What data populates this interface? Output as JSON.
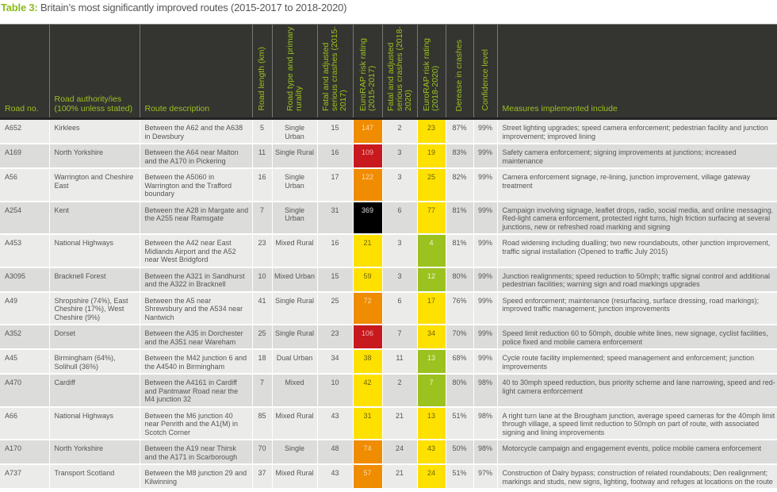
{
  "title": {
    "label": "Table 3:",
    "text": " Britain’s most significantly improved routes (2015-2017 to 2018-2020)"
  },
  "colors": {
    "header_bg": "#343431",
    "header_text": "#9bc21e",
    "orange": "#f08c00",
    "red": "#c8191e",
    "yellow": "#ffe100",
    "green": "#9bc21e",
    "black": "#000000"
  },
  "headers": [
    "Road no.",
    "Road authority/ies (100% unless stated)",
    "Route description",
    "Road length (km)",
    "Road type and primary rurality",
    "Fatal and adjusted serious crashes (2015-2017)",
    "EuroRAP risk rating (2015-2017)",
    "Fatal and adjusted serious crashes (2018-2020)",
    "EuroRAP risk rating (2018-2020)",
    "Derease in crashes",
    "Confidence level",
    "Measures implemented include"
  ],
  "rows": [
    {
      "road": "A652",
      "authority": "Kirklees",
      "route": "Between the A62 and the A638 in Dewsbury",
      "length": "5",
      "type": "Single Urban",
      "crashes1": "15",
      "rating1": "147",
      "band1": "orange",
      "crashes2": "2",
      "rating2": "23",
      "band2": "yellow",
      "decrease": "87%",
      "confidence": "99%",
      "measures": "Street lighting upgrades; speed camera enforcement; pedestrian facility and junction improvement; improved lining"
    },
    {
      "road": "A169",
      "authority": "North Yorkshire",
      "route": "Between the A64 near Malton and the A170 in Pickering",
      "length": "11",
      "type": "Single Rural",
      "crashes1": "16",
      "rating1": "109",
      "band1": "red",
      "crashes2": "3",
      "rating2": "19",
      "band2": "yellow",
      "decrease": "83%",
      "confidence": "99%",
      "measures": "Safety camera enforcement; signing improvements at junctions; increased maintenance"
    },
    {
      "road": "A56",
      "authority": "Warrington and Cheshire East",
      "route": "Between the A5060 in Warrington and the Trafford boundary",
      "length": "16",
      "type": "Single Urban",
      "crashes1": "17",
      "rating1": "122",
      "band1": "orange",
      "crashes2": "3",
      "rating2": "25",
      "band2": "yellow",
      "decrease": "82%",
      "confidence": "99%",
      "measures": "Camera enforcement signage, re-lining, junction improvement, village gateway treatment"
    },
    {
      "road": "A254",
      "authority": "Kent",
      "route": "Between the A28 in Margate and the A255 near Ramsgate",
      "length": "7",
      "type": "Single Urban",
      "crashes1": "31",
      "rating1": "369",
      "band1": "black",
      "crashes2": "6",
      "rating2": "77",
      "band2": "yellow",
      "decrease": "81%",
      "confidence": "99%",
      "measures": "Campaign involving signage, leaflet drops, radio, social media, and online messaging. Red-light camera enforcement, protected right turns, high friction surfacing at several junctions, new or refreshed road marking and signing"
    },
    {
      "road": "A453",
      "authority": "National Highways",
      "route": "Between the A42 near East Midlands Airport and the A52 near West Bridgford",
      "length": "23",
      "type": "Mixed Rural",
      "crashes1": "16",
      "rating1": "21",
      "band1": "yellow",
      "crashes2": "3",
      "rating2": "4",
      "band2": "green",
      "decrease": "81%",
      "confidence": "99%",
      "measures": "Road widening including dualling; two new roundabouts, other junction improvement, traffic signal installation (Opened to traffic July 2015)"
    },
    {
      "road": "A3095",
      "authority": "Bracknell Forest",
      "route": "Between the A321 in Sandhurst and the A322 in Bracknell",
      "length": "10",
      "type": "Mixed Urban",
      "crashes1": "15",
      "rating1": "59",
      "band1": "yellow",
      "crashes2": "3",
      "rating2": "12",
      "band2": "green",
      "decrease": "80%",
      "confidence": "99%",
      "measures": "Junction realignments; speed reduction to 50mph; traffic signal control and additional pedestrian facilities; warning sign and road markings upgrades"
    },
    {
      "road": "A49",
      "authority": "Shropshire (74%), East Cheshire (17%), West Cheshire (9%)",
      "route": "Between the A5 near Shrewsbury and the A534 near Nantwich",
      "length": "41",
      "type": "Single Rural",
      "crashes1": "25",
      "rating1": "72",
      "band1": "orange",
      "crashes2": "6",
      "rating2": "17",
      "band2": "yellow",
      "decrease": "76%",
      "confidence": "99%",
      "measures": "Speed enforcement; maintenance (resurfacing, surface dressing, road markings); improved traffic management; junction improvements"
    },
    {
      "road": "A352",
      "authority": "Dorset",
      "route": "Between the A35 in Dorchester and the A351 near Wareham",
      "length": "25",
      "type": "Single Rural",
      "crashes1": "23",
      "rating1": "106",
      "band1": "red",
      "crashes2": "7",
      "rating2": "34",
      "band2": "yellow",
      "decrease": "70%",
      "confidence": "99%",
      "measures": "Speed limit reduction 60 to 50mph, double white lines, new signage, cyclist facilities, police fixed and mobile camera enforcement"
    },
    {
      "road": "A45",
      "authority": "Birmingham (64%), Solihull (36%)",
      "route": "Between the M42 junction 6 and the A4540 in Birmingham",
      "length": "18",
      "type": "Dual Urban",
      "crashes1": "34",
      "rating1": "38",
      "band1": "yellow",
      "crashes2": "11",
      "rating2": "13",
      "band2": "green",
      "decrease": "68%",
      "confidence": "99%",
      "measures": "Cycle route facility implemented; speed management and enforcement; junction improvements"
    },
    {
      "road": "A470",
      "authority": "Cardiff",
      "route": "Between the A4161 in Cardiff and Pantmawr Road near the M4 junction 32",
      "length": "7",
      "type": "Mixed",
      "crashes1": "10",
      "rating1": "42",
      "band1": "yellow",
      "crashes2": "2",
      "rating2": "7",
      "band2": "green",
      "decrease": "80%",
      "confidence": "98%",
      "measures": "40 to 30mph speed reduction, bus priority scheme and lane narrowing, speed and red-light camera enforcement"
    },
    {
      "road": "A66",
      "authority": "National Highways",
      "route": "Between the M6 junction 40 near Penrith and the A1(M) in Scotch Corner",
      "length": "85",
      "type": "Mixed Rural",
      "crashes1": "43",
      "rating1": "31",
      "band1": "yellow",
      "crashes2": "21",
      "rating2": "13",
      "band2": "yellow",
      "decrease": "51%",
      "confidence": "98%",
      "measures": "A right turn lane at the Brougham junction, average speed cameras for the 40mph limit through village, a speed limit reduction to 50mph on part of route, with associated signing and lining improvements"
    },
    {
      "road": "A170",
      "authority": "North Yorkshire",
      "route": "Between the A19 near Thirsk and the A171 in Scarborough",
      "length": "70",
      "type": "Single",
      "crashes1": "48",
      "rating1": "74",
      "band1": "orange",
      "crashes2": "24",
      "rating2": "43",
      "band2": "yellow",
      "decrease": "50%",
      "confidence": "98%",
      "measures": "Motorcycle campaign and engagement events, police mobile camera enforcement"
    },
    {
      "road": "A737",
      "authority": "Transport Scotland",
      "route": "Between the M8 junction 29 and Kilwinning",
      "length": "37",
      "type": "Mixed Rural",
      "crashes1": "43",
      "rating1": "57",
      "band1": "orange",
      "crashes2": "21",
      "rating2": "24",
      "band2": "yellow",
      "decrease": "51%",
      "confidence": "97%",
      "measures": "Construction of Dalry bypass; construction of related roundabouts; Den realignment; markings and studs, new signs, lighting, footway and refuges at locations on the route"
    }
  ]
}
